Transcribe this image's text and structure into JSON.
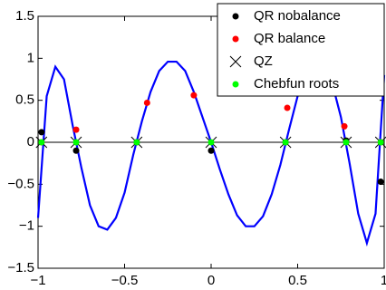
{
  "chart_data": {
    "type": "line",
    "xlim": [
      -1,
      1
    ],
    "ylim": [
      -1.5,
      1.5
    ],
    "xticks": [
      {
        "value": -1,
        "label": "−1"
      },
      {
        "value": -0.5,
        "label": "−0.5"
      },
      0,
      0.5,
      1
    ],
    "yticks": [
      {
        "value": -1.5,
        "label": "−1.5"
      },
      {
        "value": -1,
        "label": "−1"
      },
      {
        "value": -0.5,
        "label": "−0.5"
      },
      0,
      0.5,
      1,
      1.5
    ],
    "grid": false,
    "zero_line": true,
    "legend": "upper right",
    "series": [
      {
        "kind": "line",
        "color": "#0000ff",
        "x": [
          -1,
          -0.95,
          -0.9,
          -0.85,
          -0.8,
          -0.75,
          -0.7,
          -0.65,
          -0.6,
          -0.55,
          -0.5,
          -0.45,
          -0.4,
          -0.35,
          -0.3,
          -0.25,
          -0.2,
          -0.15,
          -0.1,
          -0.05,
          0,
          0.05,
          0.1,
          0.15,
          0.2,
          0.25,
          0.3,
          0.35,
          0.4,
          0.45,
          0.5,
          0.55,
          0.6,
          0.65,
          0.7,
          0.75,
          0.8,
          0.85,
          0.9,
          0.95,
          1
        ],
        "values": [
          -0.9,
          0.55,
          0.9,
          0.75,
          0.2,
          -0.3,
          -0.75,
          -1.0,
          -1.04,
          -0.9,
          -0.6,
          -0.15,
          0.25,
          0.6,
          0.85,
          0.96,
          0.96,
          0.85,
          0.6,
          0.3,
          0.0,
          -0.32,
          -0.62,
          -0.87,
          -1.0,
          -1.0,
          -0.88,
          -0.62,
          -0.27,
          0.15,
          0.55,
          0.85,
          1.0,
          0.95,
          0.7,
          0.3,
          -0.25,
          -0.85,
          -1.2,
          -0.85,
          0.8
        ]
      },
      {
        "kind": "scatter",
        "marker": "o",
        "name": "QR nobalance",
        "color": "#000000",
        "x": [
          -0.98,
          -0.78,
          -0.43,
          0,
          0.43,
          0.78,
          0.98
        ],
        "values": [
          0.12,
          -0.1,
          0,
          -0.1,
          0,
          0.02,
          -0.47
        ]
      },
      {
        "kind": "scatter",
        "marker": "o",
        "name": "QR balance",
        "color": "#ff0000",
        "x": [
          -0.98,
          -0.78,
          -0.37,
          -0.1,
          0.44,
          0.77,
          0.98
        ],
        "values": [
          0,
          0.15,
          0.47,
          0.56,
          0.41,
          0.19,
          0
        ]
      },
      {
        "kind": "scatter",
        "marker": "x",
        "name": "QZ",
        "color": "#000000",
        "x": [
          -0.98,
          -0.78,
          -0.43,
          0,
          0.43,
          0.78,
          0.98
        ],
        "values": [
          0,
          0,
          0,
          0,
          0,
          0,
          0
        ]
      },
      {
        "kind": "scatter",
        "marker": "o",
        "name": "Chebfun roots",
        "color": "#00ff00",
        "x": [
          -0.98,
          -0.78,
          -0.43,
          0,
          0.43,
          0.78,
          0.98
        ],
        "values": [
          0,
          0,
          0,
          0,
          0,
          0,
          0
        ]
      }
    ]
  }
}
